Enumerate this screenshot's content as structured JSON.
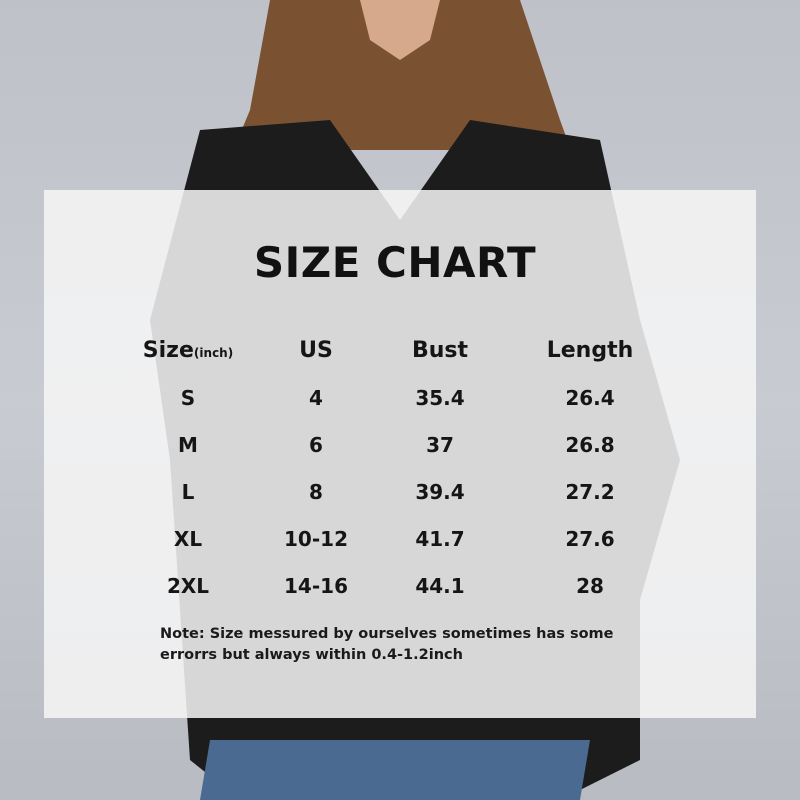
{
  "title": "SIZE CHART",
  "columns": [
    "Size",
    "US",
    "Bust",
    "Length"
  ],
  "size_unit": "(inch)",
  "rows": [
    [
      "S",
      "4",
      "35.4",
      "26.4"
    ],
    [
      "M",
      "6",
      "37",
      "26.8"
    ],
    [
      "L",
      "8",
      "39.4",
      "27.2"
    ],
    [
      "XL",
      "10-12",
      "41.7",
      "27.6"
    ],
    [
      "2XL",
      "14-16",
      "44.1",
      "28"
    ]
  ],
  "note_line1": "Note:  Size messured by ourselves sometimes has some",
  "note_line2": "errorrs but always within 0.4-1.2inch",
  "colors": {
    "background": "#c4c6cd",
    "jacket": "#1c1c1c",
    "hair": "#7a5232",
    "jeans": "#4a6a92",
    "panel": "#f6f6f6"
  }
}
